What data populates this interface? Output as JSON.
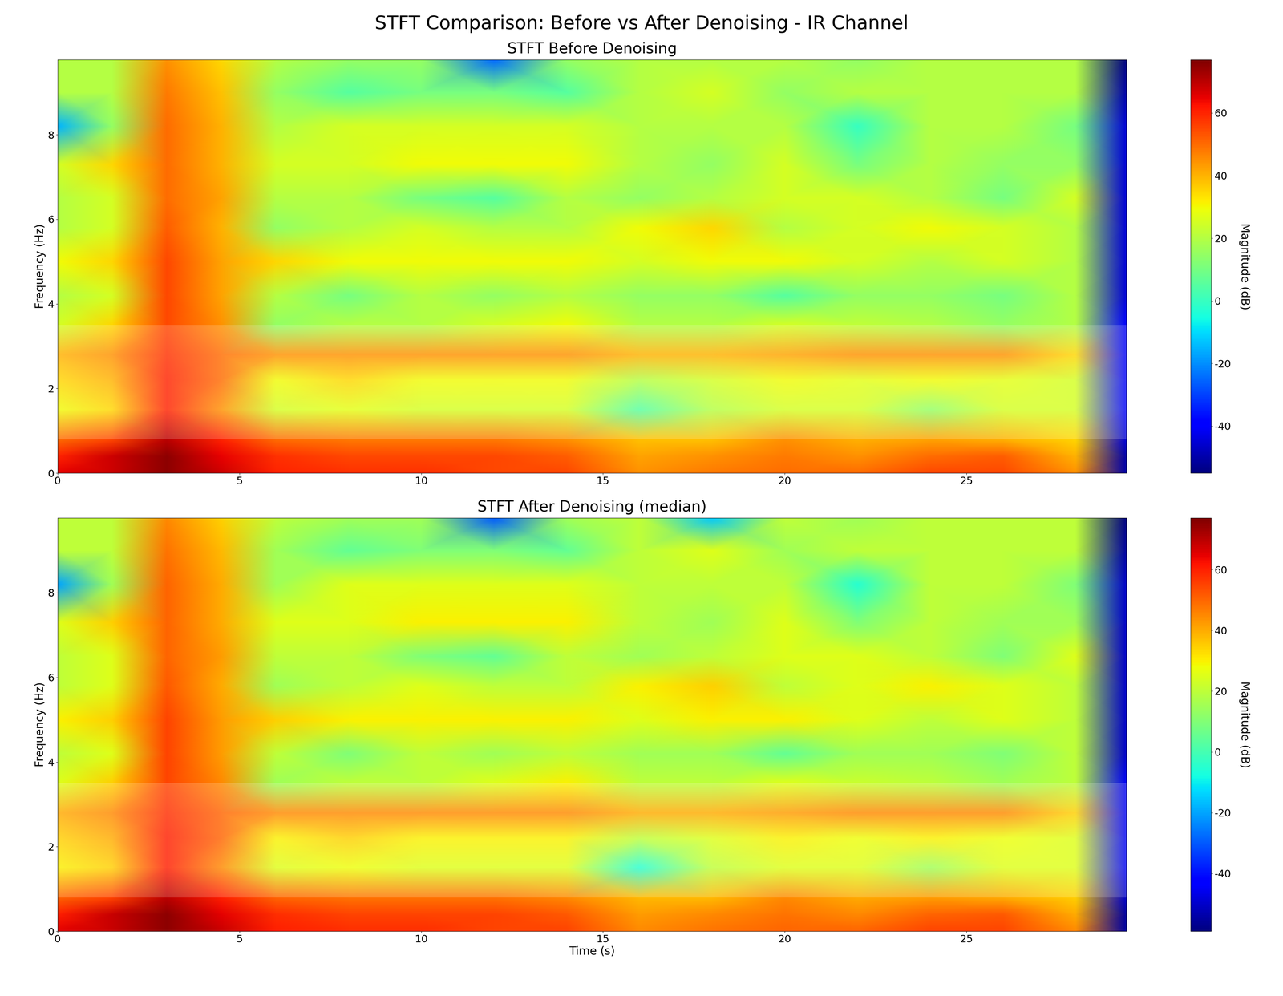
{
  "title": "STFT Comparison: Before vs After Denoising - IR Channel",
  "chart_data": [
    {
      "type": "heatmap",
      "title": "STFT Before Denoising",
      "ylabel": "Frequency (Hz)",
      "color": "jet",
      "x": [
        0,
        1.5,
        3,
        4.5,
        6,
        8,
        10,
        12,
        14,
        16,
        18,
        20,
        22,
        24,
        26,
        28,
        29.4
      ],
      "y": [
        0,
        0.4,
        0.8,
        1.5,
        2.2,
        2.8,
        3.5,
        4.2,
        5,
        5.8,
        6.5,
        7.3,
        8.2,
        9,
        9.77
      ],
      "cells": [
        [
          65,
          68,
          75,
          68,
          60,
          58,
          58,
          55,
          55,
          45,
          48,
          50,
          50,
          55,
          55,
          45,
          -50
        ],
        [
          60,
          68,
          75,
          65,
          58,
          55,
          55,
          55,
          52,
          42,
          45,
          48,
          45,
          50,
          52,
          40,
          -50
        ],
        [
          50,
          55,
          70,
          60,
          50,
          48,
          48,
          48,
          45,
          38,
          38,
          45,
          40,
          42,
          40,
          35,
          -45
        ],
        [
          30,
          35,
          60,
          45,
          25,
          28,
          25,
          25,
          25,
          5,
          20,
          25,
          25,
          15,
          25,
          25,
          -40
        ],
        [
          35,
          40,
          60,
          50,
          30,
          35,
          30,
          30,
          30,
          20,
          25,
          30,
          28,
          30,
          28,
          25,
          -40
        ],
        [
          40,
          45,
          58,
          50,
          45,
          45,
          45,
          45,
          45,
          40,
          40,
          42,
          45,
          45,
          45,
          35,
          -40
        ],
        [
          25,
          35,
          55,
          45,
          15,
          20,
          20,
          25,
          30,
          20,
          20,
          25,
          22,
          20,
          15,
          20,
          -40
        ],
        [
          20,
          25,
          55,
          42,
          20,
          10,
          20,
          15,
          20,
          15,
          15,
          5,
          15,
          15,
          10,
          20,
          -45
        ],
        [
          30,
          35,
          55,
          42,
          35,
          30,
          30,
          30,
          30,
          25,
          30,
          30,
          25,
          20,
          25,
          20,
          -45
        ],
        [
          20,
          25,
          52,
          40,
          15,
          20,
          25,
          20,
          20,
          30,
          35,
          20,
          25,
          30,
          25,
          20,
          -45
        ],
        [
          20,
          25,
          50,
          42,
          20,
          20,
          10,
          5,
          20,
          15,
          20,
          25,
          25,
          20,
          10,
          25,
          -45
        ],
        [
          25,
          35,
          50,
          40,
          25,
          25,
          30,
          30,
          30,
          20,
          15,
          25,
          10,
          20,
          15,
          15,
          -45
        ],
        [
          -15,
          15,
          50,
          40,
          20,
          25,
          25,
          25,
          25,
          20,
          20,
          20,
          0,
          20,
          20,
          10,
          -45
        ],
        [
          20,
          20,
          48,
          38,
          15,
          5,
          10,
          10,
          5,
          20,
          25,
          15,
          20,
          20,
          20,
          20,
          -50
        ],
        [
          20,
          20,
          45,
          35,
          20,
          15,
          15,
          -25,
          15,
          20,
          20,
          20,
          15,
          20,
          20,
          20,
          -55
        ]
      ],
      "band": [
        0.8,
        3.5
      ],
      "xlim": [
        0,
        29.4
      ],
      "xticks": [
        0,
        5,
        10,
        15,
        20,
        25
      ],
      "ylim": [
        0,
        9.77
      ],
      "yticks": [
        0,
        2,
        4,
        6,
        8
      ],
      "colorbar_label": "Magnitude (dB)",
      "colorbar_range": [
        -55,
        77
      ],
      "colorbar_ticks": [
        -40,
        -20,
        0,
        20,
        40,
        60
      ]
    },
    {
      "type": "heatmap",
      "title": "STFT After Denoising (median)",
      "xlabel": "Time (s)",
      "ylabel": "Frequency (Hz)",
      "color": "jet",
      "x": [
        0,
        1.5,
        3,
        4.5,
        6,
        8,
        10,
        12,
        14,
        16,
        18,
        20,
        22,
        24,
        26,
        28,
        29.4
      ],
      "y": [
        0,
        0.4,
        0.8,
        1.5,
        2.2,
        2.8,
        3.5,
        4.2,
        5,
        5.8,
        6.5,
        7.3,
        8.2,
        9,
        9.77
      ],
      "cells": [
        [
          65,
          68,
          75,
          68,
          60,
          58,
          58,
          55,
          55,
          45,
          48,
          50,
          50,
          55,
          55,
          45,
          -55
        ],
        [
          60,
          68,
          75,
          65,
          58,
          55,
          55,
          55,
          52,
          42,
          45,
          48,
          45,
          50,
          52,
          40,
          -55
        ],
        [
          50,
          55,
          70,
          60,
          50,
          48,
          48,
          48,
          45,
          38,
          38,
          45,
          40,
          42,
          40,
          35,
          -50
        ],
        [
          30,
          35,
          60,
          45,
          25,
          28,
          25,
          25,
          25,
          -5,
          20,
          25,
          25,
          15,
          25,
          25,
          -45
        ],
        [
          35,
          40,
          60,
          50,
          30,
          35,
          30,
          30,
          30,
          20,
          25,
          30,
          28,
          30,
          28,
          25,
          -45
        ],
        [
          40,
          45,
          58,
          50,
          45,
          45,
          45,
          45,
          45,
          40,
          40,
          42,
          45,
          45,
          45,
          35,
          -45
        ],
        [
          25,
          35,
          55,
          45,
          15,
          20,
          20,
          25,
          30,
          20,
          20,
          25,
          22,
          20,
          15,
          20,
          -45
        ],
        [
          20,
          25,
          55,
          42,
          20,
          10,
          20,
          15,
          20,
          15,
          15,
          5,
          15,
          15,
          10,
          20,
          -50
        ],
        [
          30,
          35,
          55,
          42,
          35,
          30,
          30,
          30,
          30,
          25,
          30,
          30,
          25,
          20,
          25,
          20,
          -50
        ],
        [
          20,
          25,
          52,
          40,
          15,
          20,
          25,
          20,
          20,
          30,
          35,
          20,
          25,
          30,
          25,
          20,
          -50
        ],
        [
          20,
          25,
          50,
          42,
          20,
          20,
          10,
          5,
          20,
          15,
          20,
          25,
          25,
          20,
          10,
          25,
          -50
        ],
        [
          25,
          35,
          50,
          40,
          25,
          25,
          30,
          30,
          30,
          20,
          15,
          25,
          10,
          20,
          15,
          15,
          -50
        ],
        [
          -20,
          15,
          50,
          40,
          15,
          25,
          25,
          25,
          25,
          20,
          20,
          20,
          -5,
          20,
          20,
          10,
          -50
        ],
        [
          20,
          20,
          48,
          38,
          15,
          5,
          10,
          10,
          5,
          20,
          25,
          15,
          20,
          20,
          20,
          20,
          -55
        ],
        [
          20,
          20,
          45,
          35,
          20,
          15,
          15,
          -30,
          15,
          20,
          -15,
          20,
          15,
          20,
          20,
          20,
          -59
        ]
      ],
      "band": [
        0.8,
        3.5
      ],
      "xlim": [
        0,
        29.4
      ],
      "xticks": [
        0,
        5,
        10,
        15,
        20,
        25
      ],
      "ylim": [
        0,
        9.77
      ],
      "yticks": [
        0,
        2,
        4,
        6,
        8
      ],
      "colorbar_label": "Magnitude (dB)",
      "colorbar_range": [
        -59,
        77
      ],
      "colorbar_ticks": [
        -40,
        -20,
        0,
        20,
        40,
        60
      ]
    }
  ]
}
